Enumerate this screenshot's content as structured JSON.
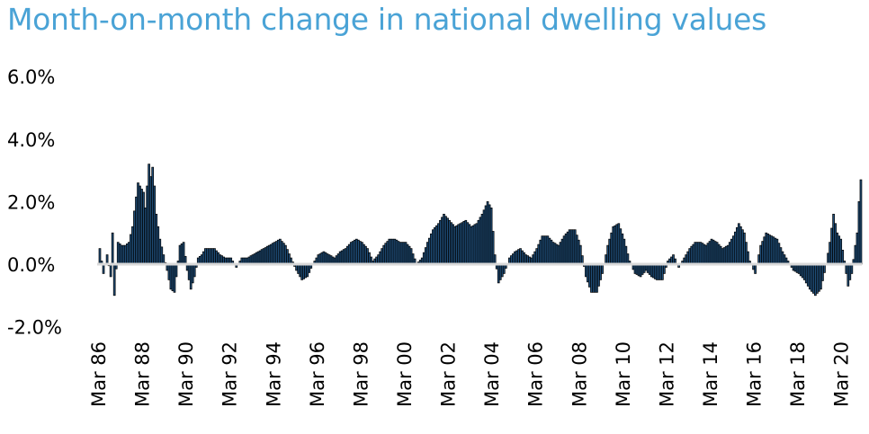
{
  "chart_data": {
    "type": "bar",
    "title": "Month-on-month change in national dwelling values",
    "xlabel": "",
    "ylabel": "",
    "ylim": [
      -2.0,
      6.0
    ],
    "y_ticks": [
      "6.0%",
      "4.0%",
      "2.0%",
      "0.0%",
      "-2.0%"
    ],
    "y_tick_values": [
      6.0,
      4.0,
      2.0,
      0.0,
      -2.0
    ],
    "x_tick_labels": [
      "Mar 86",
      "Mar 88",
      "Mar 90",
      "Mar 92",
      "Mar 94",
      "Mar 96",
      "Mar 98",
      "Mar 00",
      "Mar 02",
      "Mar 04",
      "Mar 06",
      "Mar 08",
      "Mar 10",
      "Mar 12",
      "Mar 14",
      "Mar 16",
      "Mar 18",
      "Mar 20"
    ],
    "start": "Mar 1986",
    "end": "Dec 2020",
    "bar_color": "#1f4e79",
    "bar_edge_color": "#000000",
    "grid": false,
    "legend": "none",
    "anchors": [
      [
        "1986-03",
        0.5
      ],
      [
        "1986-05",
        -0.3
      ],
      [
        "1986-07",
        0.3
      ],
      [
        "1986-09",
        -0.4
      ],
      [
        "1986-10",
        1.0
      ],
      [
        "1986-11",
        -1.0
      ],
      [
        "1987-01",
        0.7
      ],
      [
        "1987-03",
        0.6
      ],
      [
        "1987-05",
        0.6
      ],
      [
        "1987-07",
        0.7
      ],
      [
        "1987-09",
        1.2
      ],
      [
        "1987-10",
        1.7
      ],
      [
        "1987-12",
        2.6
      ],
      [
        "1988-01",
        2.5
      ],
      [
        "1988-02",
        2.4
      ],
      [
        "1988-03",
        2.3
      ],
      [
        "1988-04",
        1.8
      ],
      [
        "1988-05",
        2.5
      ],
      [
        "1988-06",
        3.2
      ],
      [
        "1988-07",
        2.8
      ],
      [
        "1988-08",
        3.1
      ],
      [
        "1988-09",
        2.5
      ],
      [
        "1988-10",
        1.6
      ],
      [
        "1988-12",
        0.8
      ],
      [
        "1989-02",
        0.3
      ],
      [
        "1989-04",
        -0.2
      ],
      [
        "1989-06",
        -0.8
      ],
      [
        "1989-08",
        -0.9
      ],
      [
        "1989-09",
        -0.4
      ],
      [
        "1989-11",
        0.6
      ],
      [
        "1990-01",
        0.7
      ],
      [
        "1990-03",
        -0.2
      ],
      [
        "1990-05",
        -0.8
      ],
      [
        "1990-07",
        -0.4
      ],
      [
        "1990-09",
        0.2
      ],
      [
        "1990-11",
        0.3
      ],
      [
        "1991-01",
        0.5
      ],
      [
        "1991-03",
        0.5
      ],
      [
        "1991-06",
        0.5
      ],
      [
        "1991-09",
        0.3
      ],
      [
        "1991-12",
        0.2
      ],
      [
        "1992-03",
        0.2
      ],
      [
        "1992-06",
        -0.1
      ],
      [
        "1992-09",
        0.2
      ],
      [
        "1992-12",
        0.2
      ],
      [
        "1993-03",
        0.3
      ],
      [
        "1993-06",
        0.4
      ],
      [
        "1993-09",
        0.5
      ],
      [
        "1993-12",
        0.6
      ],
      [
        "1994-03",
        0.7
      ],
      [
        "1994-06",
        0.8
      ],
      [
        "1994-09",
        0.6
      ],
      [
        "1994-12",
        0.2
      ],
      [
        "1995-03",
        -0.2
      ],
      [
        "1995-06",
        -0.5
      ],
      [
        "1995-09",
        -0.4
      ],
      [
        "1995-12",
        0.0
      ],
      [
        "1996-03",
        0.3
      ],
      [
        "1996-06",
        0.4
      ],
      [
        "1996-09",
        0.3
      ],
      [
        "1996-12",
        0.2
      ],
      [
        "1997-03",
        0.4
      ],
      [
        "1997-06",
        0.5
      ],
      [
        "1997-09",
        0.7
      ],
      [
        "1997-12",
        0.8
      ],
      [
        "1998-03",
        0.7
      ],
      [
        "1998-06",
        0.5
      ],
      [
        "1998-09",
        0.1
      ],
      [
        "1998-12",
        0.3
      ],
      [
        "1999-03",
        0.6
      ],
      [
        "1999-06",
        0.8
      ],
      [
        "1999-09",
        0.8
      ],
      [
        "1999-12",
        0.7
      ],
      [
        "2000-03",
        0.7
      ],
      [
        "2000-06",
        0.5
      ],
      [
        "2000-09",
        0.0
      ],
      [
        "2000-12",
        0.2
      ],
      [
        "2001-03",
        0.7
      ],
      [
        "2001-06",
        1.1
      ],
      [
        "2001-09",
        1.3
      ],
      [
        "2001-12",
        1.6
      ],
      [
        "2002-03",
        1.4
      ],
      [
        "2002-06",
        1.2
      ],
      [
        "2002-09",
        1.3
      ],
      [
        "2002-12",
        1.4
      ],
      [
        "2003-03",
        1.2
      ],
      [
        "2003-06",
        1.3
      ],
      [
        "2003-09",
        1.6
      ],
      [
        "2003-12",
        2.0
      ],
      [
        "2004-02",
        1.8
      ],
      [
        "2004-04",
        0.3
      ],
      [
        "2004-06",
        -0.6
      ],
      [
        "2004-09",
        -0.3
      ],
      [
        "2004-12",
        0.2
      ],
      [
        "2005-03",
        0.4
      ],
      [
        "2005-06",
        0.5
      ],
      [
        "2005-09",
        0.3
      ],
      [
        "2005-12",
        0.2
      ],
      [
        "2006-03",
        0.5
      ],
      [
        "2006-06",
        0.9
      ],
      [
        "2006-09",
        0.9
      ],
      [
        "2006-12",
        0.7
      ],
      [
        "2007-03",
        0.6
      ],
      [
        "2007-06",
        0.9
      ],
      [
        "2007-09",
        1.1
      ],
      [
        "2007-12",
        1.1
      ],
      [
        "2008-03",
        0.6
      ],
      [
        "2008-06",
        -0.4
      ],
      [
        "2008-09",
        -0.9
      ],
      [
        "2008-12",
        -0.9
      ],
      [
        "2009-03",
        -0.3
      ],
      [
        "2009-06",
        0.6
      ],
      [
        "2009-09",
        1.2
      ],
      [
        "2009-12",
        1.3
      ],
      [
        "2010-03",
        0.8
      ],
      [
        "2010-06",
        0.1
      ],
      [
        "2010-09",
        -0.3
      ],
      [
        "2010-12",
        -0.4
      ],
      [
        "2011-03",
        -0.2
      ],
      [
        "2011-06",
        -0.4
      ],
      [
        "2011-09",
        -0.5
      ],
      [
        "2011-12",
        -0.5
      ],
      [
        "2012-03",
        0.1
      ],
      [
        "2012-06",
        0.3
      ],
      [
        "2012-09",
        -0.1
      ],
      [
        "2012-12",
        0.2
      ],
      [
        "2013-03",
        0.5
      ],
      [
        "2013-06",
        0.7
      ],
      [
        "2013-09",
        0.7
      ],
      [
        "2013-12",
        0.6
      ],
      [
        "2014-03",
        0.8
      ],
      [
        "2014-06",
        0.7
      ],
      [
        "2014-09",
        0.5
      ],
      [
        "2014-12",
        0.6
      ],
      [
        "2015-03",
        0.9
      ],
      [
        "2015-06",
        1.3
      ],
      [
        "2015-09",
        1.0
      ],
      [
        "2015-12",
        0.1
      ],
      [
        "2016-03",
        -0.3
      ],
      [
        "2016-06",
        0.6
      ],
      [
        "2016-09",
        1.0
      ],
      [
        "2016-12",
        0.9
      ],
      [
        "2017-03",
        0.8
      ],
      [
        "2017-06",
        0.4
      ],
      [
        "2017-09",
        0.1
      ],
      [
        "2017-12",
        -0.2
      ],
      [
        "2018-03",
        -0.3
      ],
      [
        "2018-06",
        -0.5
      ],
      [
        "2018-09",
        -0.8
      ],
      [
        "2018-12",
        -1.0
      ],
      [
        "2019-03",
        -0.8
      ],
      [
        "2019-06",
        0.0
      ],
      [
        "2019-08",
        0.7
      ],
      [
        "2019-10",
        1.6
      ],
      [
        "2019-12",
        1.0
      ],
      [
        "2020-02",
        0.8
      ],
      [
        "2020-04",
        0.1
      ],
      [
        "2020-06",
        -0.7
      ],
      [
        "2020-08",
        -0.3
      ],
      [
        "2020-10",
        0.6
      ],
      [
        "2020-11",
        1.0
      ],
      [
        "2020-12",
        2.0
      ],
      [
        "2021-01",
        2.7
      ]
    ]
  }
}
